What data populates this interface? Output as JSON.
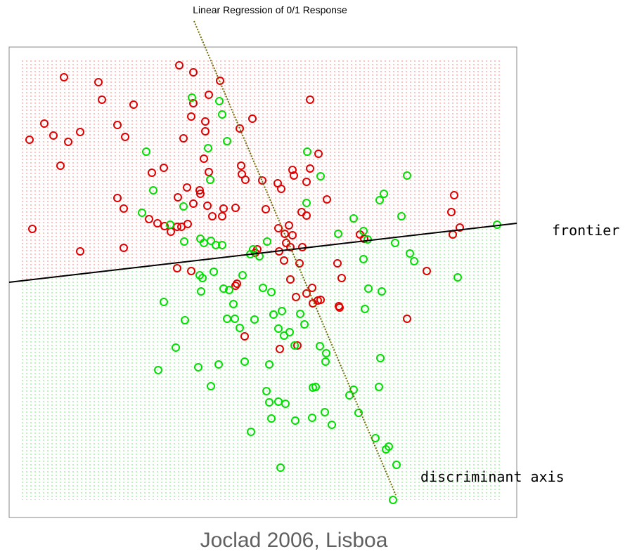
{
  "chart_data": {
    "type": "scatter",
    "title": "Linear Regression of 0/1 Response",
    "annotations": [
      "frontier",
      "discriminant axis"
    ],
    "footer": "Joclad 2006, Lisboa",
    "xlim": [
      13,
      735
    ],
    "ylim": [
      737,
      67
    ],
    "series": [
      {
        "color": "#e00000",
        "x": [
          91,
          140,
          145,
          190,
          63,
          76,
          97,
          114,
          42,
          167,
          178,
          86,
          46,
          114,
          176,
          167,
          176,
          212,
          224,
          234,
          243,
          252,
          258,
          267,
          255,
          275,
          313,
          297,
          275,
          272,
          292,
          292,
          261,
          233,
          216,
          266,
          284,
          285,
          290,
          297,
          253,
          275,
          295,
          302,
          318,
          316,
          335,
          341,
          359,
          343,
          344,
          349,
          373,
          378,
          395,
          400,
          416,
          418,
          441,
          436,
          441,
          453,
          465,
          429,
          436,
          396,
          411,
          416,
          405,
          397,
          407,
          413,
          430,
          404,
          426,
          366,
          363,
          252,
          272,
          337,
          335,
          413,
          444,
          436,
          421,
          445,
          452,
          456,
          482,
          483,
          486,
          480,
          518,
          512,
          579,
          607,
          642,
          646,
          654,
          644,
          348,
          398,
          423
        ],
        "values": [
          110,
          117,
          142,
          149,
          176,
          193,
          202,
          188,
          199,
          178,
          195,
          236,
          326,
          358,
          353,
          282,
          297,
          312,
          318,
          322,
          330,
          323,
          323,
          319,
          93,
          103,
          115,
          135,
          147,
          166,
          173,
          187,
          197,
          239,
          246,
          267,
          271,
          276,
          226,
          245,
          281,
          290,
          293,
          308,
          297,
          308,
          296,
          183,
          169,
          236,
          248,
          256,
          257,
          298,
          261,
          269,
          242,
          250,
          240,
          259,
          142,
          219,
          284,
          302,
          307,
          325,
          321,
          335,
          333,
          358,
          346,
          352,
          352,
          371,
          375,
          355,
          360,
          382,
          386,
          404,
          407,
          398,
          410,
          418,
          423,
          432,
          428,
          427,
          436,
          438,
          396,
          375,
          340,
          334,
          454,
          386,
          302,
          278,
          324,
          334,
          479,
          497,
          492
        ]
      },
      {
        "color": "#00e000",
        "x": [
          273,
          312,
          316,
          323,
          296,
          208,
          218,
          261,
          299,
          202,
          242,
          262,
          285,
          290,
          300,
          307,
          316,
          360,
          380,
          369,
          284,
          288,
          304,
          345,
          356,
          437,
          456,
          436,
          540,
          546,
          579,
          503,
          481,
          517,
          523,
          571,
          562,
          583,
          589,
          707,
          651,
          517,
          524,
          543,
          519,
          318,
          326,
          332,
          286,
          233,
          263,
          323,
          334,
          341,
          362,
          374,
          386,
          401,
          389,
          427,
          412,
          404,
          396,
          433,
          250,
          225,
          282,
          311,
          300,
          348,
          383,
          419,
          455,
          464,
          463,
          541,
          539,
          445,
          449,
          497,
          503,
          379,
          383,
          396,
          406,
          386,
          420,
          444,
          462,
          472,
          510,
          357,
          534,
          549,
          553,
          564,
          399,
          559
        ],
        "values": [
          139,
          144,
          163,
          201,
          211,
          216,
          271,
          294,
          256,
          303,
          320,
          344,
          340,
          346,
          343,
          349,
          349,
          355,
          344,
          365,
          392,
          396,
          387,
          392,
          362,
          216,
          251,
          289,
          285,
          276,
          250,
          311,
          333,
          329,
          341,
          308,
          346,
          361,
          372,
          320,
          395,
          369,
          411,
          415,
          440,
          411,
          413,
          433,
          415,
          430,
          456,
          454,
          454,
          467,
          455,
          410,
          416,
          443,
          448,
          447,
          473,
          478,
          468,
          462,
          495,
          527,
          523,
          519,
          550,
          515,
          519,
          492,
          493,
          503,
          515,
          510,
          551,
          552,
          551,
          563,
          555,
          557,
          573,
          572,
          575,
          596,
          599,
          595,
          587,
          605,
          588,
          615,
          624,
          640,
          636,
          662,
          666,
          712
        ]
      }
    ]
  }
}
